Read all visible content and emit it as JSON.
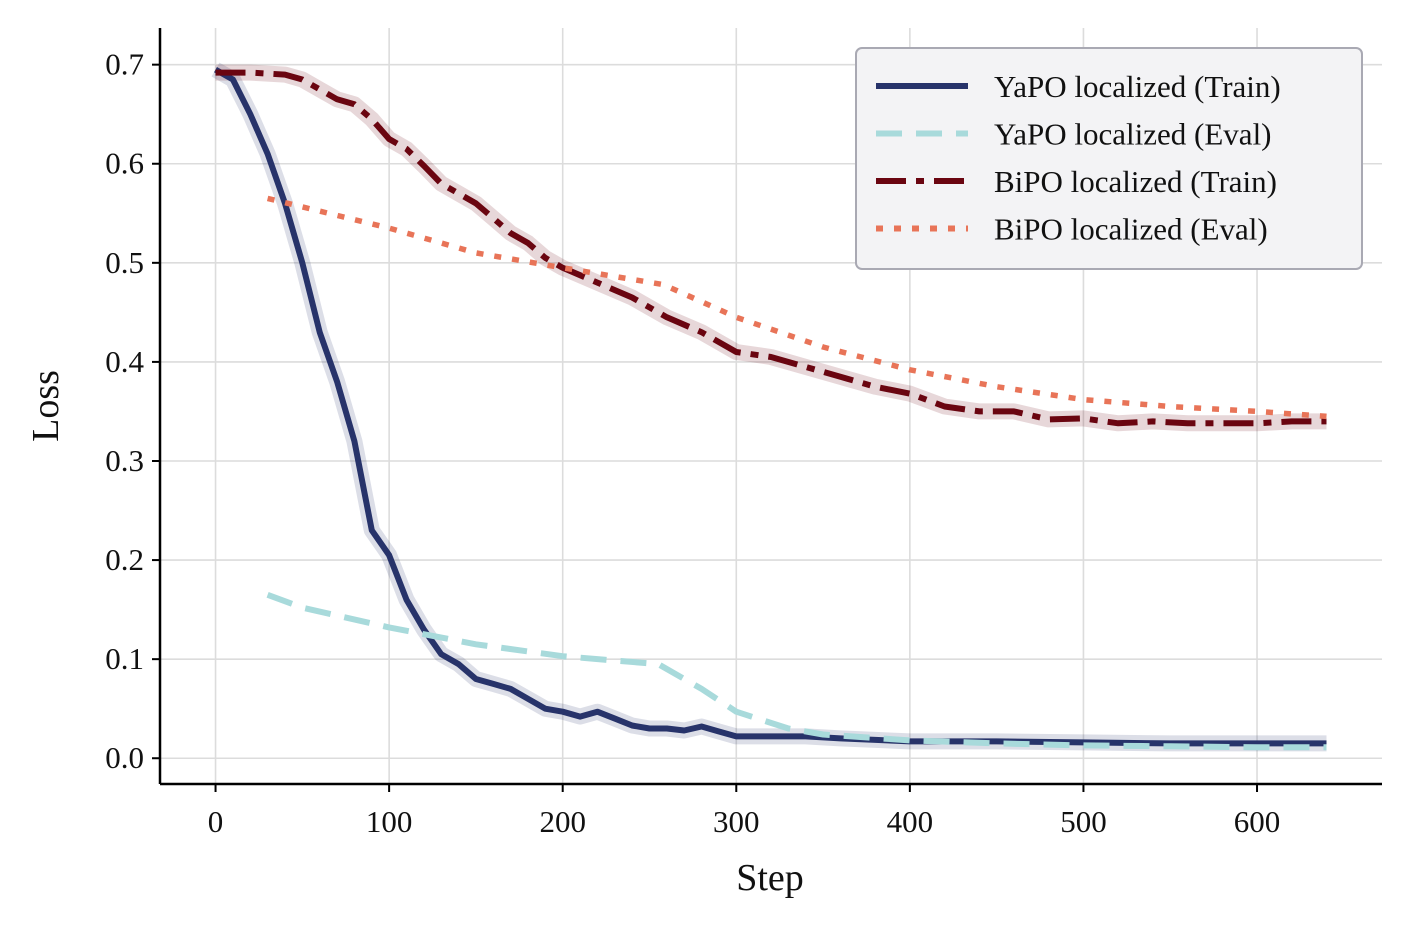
{
  "chart_data": {
    "type": "line",
    "title": "",
    "xlabel": "Step",
    "ylabel": "Loss",
    "xlim": [
      -32,
      672
    ],
    "ylim": [
      -0.026,
      0.737
    ],
    "xticks": [
      0,
      100,
      200,
      300,
      400,
      500,
      600
    ],
    "xtick_labels": [
      "0",
      "100",
      "200",
      "300",
      "400",
      "500",
      "600"
    ],
    "yticks": [
      0.0,
      0.1,
      0.2,
      0.3,
      0.4,
      0.5,
      0.6,
      0.7
    ],
    "ytick_labels": [
      "0.0",
      "0.1",
      "0.2",
      "0.3",
      "0.4",
      "0.5",
      "0.6",
      "0.7"
    ],
    "grid": true,
    "legend_position": "top-right",
    "series": [
      {
        "name": "YaPO localized (Train)",
        "color": "#27336a",
        "style": "solid",
        "shaded_band": true,
        "x": [
          0,
          10,
          20,
          30,
          40,
          50,
          60,
          70,
          80,
          90,
          100,
          110,
          120,
          130,
          140,
          150,
          160,
          170,
          180,
          190,
          200,
          210,
          220,
          230,
          240,
          250,
          260,
          270,
          280,
          290,
          300,
          320,
          340,
          360,
          400,
          450,
          500,
          550,
          600,
          640
        ],
        "y": [
          0.695,
          0.685,
          0.65,
          0.61,
          0.56,
          0.5,
          0.43,
          0.38,
          0.32,
          0.23,
          0.205,
          0.16,
          0.13,
          0.105,
          0.095,
          0.08,
          0.075,
          0.07,
          0.06,
          0.05,
          0.047,
          0.042,
          0.047,
          0.04,
          0.033,
          0.03,
          0.03,
          0.028,
          0.032,
          0.027,
          0.022,
          0.022,
          0.022,
          0.02,
          0.017,
          0.017,
          0.016,
          0.015,
          0.015,
          0.015
        ]
      },
      {
        "name": "YaPO localized (Eval)",
        "color": "#a8dadb",
        "style": "dashed",
        "x": [
          30,
          50,
          100,
          150,
          200,
          255,
          280,
          300,
          330,
          350,
          400,
          450,
          500,
          550,
          600,
          640
        ],
        "y": [
          0.165,
          0.152,
          0.132,
          0.115,
          0.103,
          0.095,
          0.07,
          0.047,
          0.03,
          0.024,
          0.018,
          0.015,
          0.013,
          0.012,
          0.011,
          0.011
        ]
      },
      {
        "name": "BiPO localized (Train)",
        "color": "#6a0510",
        "style": "dashdot",
        "shaded_band": true,
        "x": [
          0,
          20,
          40,
          50,
          60,
          70,
          80,
          90,
          100,
          110,
          120,
          130,
          140,
          150,
          160,
          170,
          180,
          190,
          200,
          220,
          240,
          260,
          280,
          300,
          320,
          340,
          360,
          380,
          400,
          420,
          440,
          460,
          480,
          500,
          520,
          540,
          560,
          580,
          600,
          620,
          640
        ],
        "y": [
          0.692,
          0.692,
          0.69,
          0.685,
          0.675,
          0.665,
          0.66,
          0.645,
          0.625,
          0.615,
          0.598,
          0.58,
          0.57,
          0.56,
          0.545,
          0.53,
          0.52,
          0.505,
          0.495,
          0.48,
          0.465,
          0.445,
          0.43,
          0.41,
          0.405,
          0.395,
          0.385,
          0.375,
          0.368,
          0.355,
          0.35,
          0.35,
          0.342,
          0.343,
          0.338,
          0.34,
          0.338,
          0.338,
          0.338,
          0.34,
          0.34
        ]
      },
      {
        "name": "BiPO localized (Eval)",
        "color": "#e87458",
        "style": "dotted",
        "x": [
          30,
          100,
          150,
          200,
          258,
          300,
          350,
          400,
          450,
          500,
          550,
          600,
          640
        ],
        "y": [
          0.565,
          0.535,
          0.51,
          0.495,
          0.478,
          0.445,
          0.415,
          0.392,
          0.375,
          0.362,
          0.355,
          0.35,
          0.345
        ]
      }
    ]
  }
}
